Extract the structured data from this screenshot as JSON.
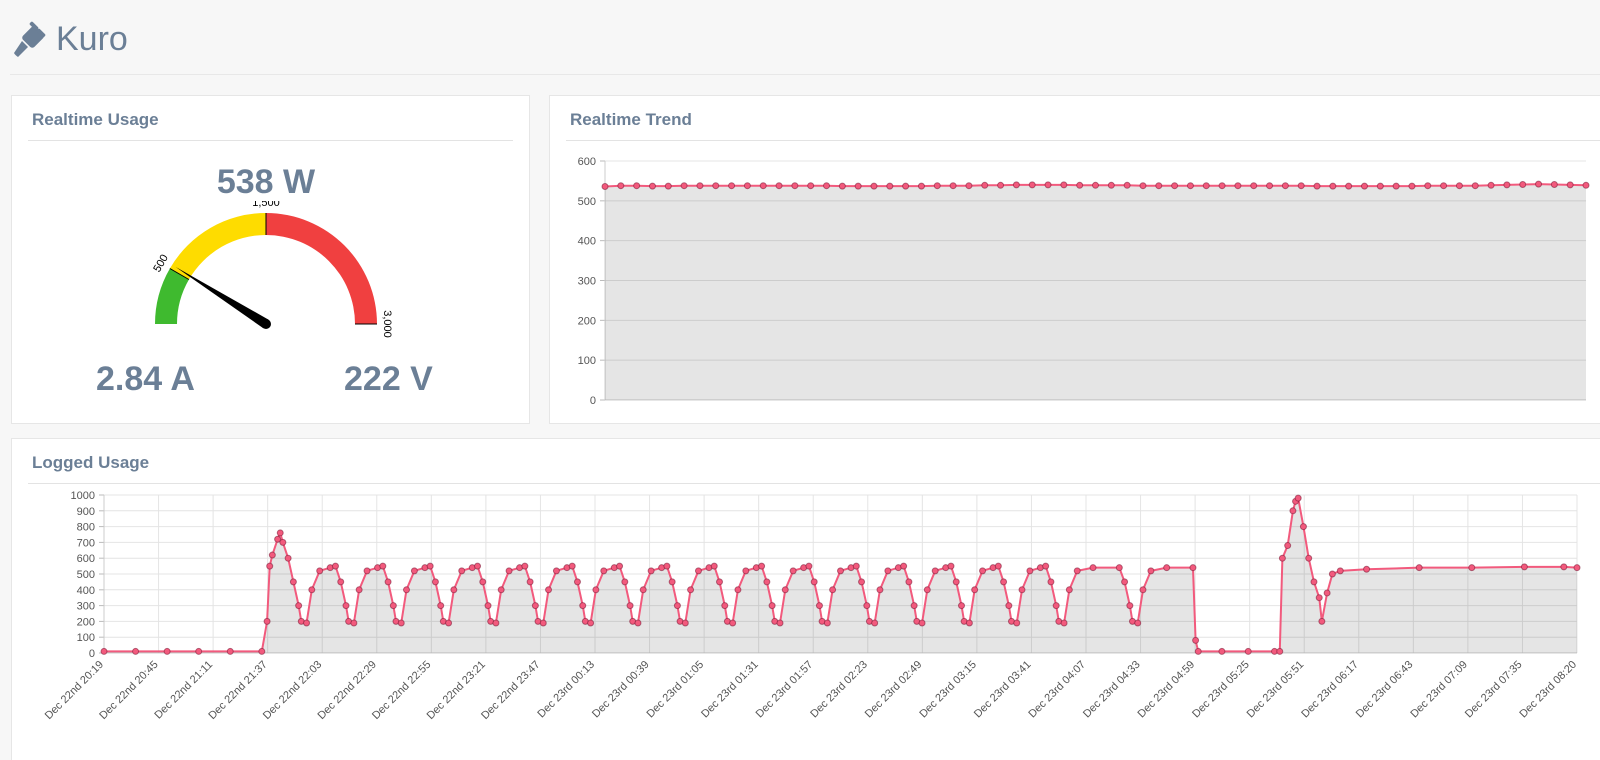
{
  "header": {
    "brand": "Kuro",
    "icon": "plug-icon"
  },
  "usage": {
    "title": "Realtime Usage",
    "power": "538 W",
    "current": "2.84 A",
    "voltage": "222 V",
    "gauge": {
      "value": 538,
      "min": 0,
      "max": 3000,
      "labels": [
        "500",
        "1,500",
        "3,000"
      ],
      "bands": [
        {
          "from": 0,
          "to": 500,
          "color": "#3fba2f"
        },
        {
          "from": 500,
          "to": 1500,
          "color": "#fedc00"
        },
        {
          "from": 1500,
          "to": 3000,
          "color": "#f04040"
        }
      ]
    }
  },
  "trend": {
    "title": "Realtime Trend",
    "chart_data": {
      "type": "area",
      "y_ticks": [
        "600",
        "500",
        "400",
        "300",
        "200",
        "100",
        "0"
      ],
      "ylim": [
        0,
        600
      ],
      "color": "#f25a7d",
      "values": [
        536,
        538,
        538,
        537,
        537,
        538,
        538,
        538,
        538,
        538,
        538,
        538,
        538,
        538,
        538,
        537,
        537,
        537,
        537,
        537,
        537,
        538,
        538,
        538,
        539,
        539,
        540,
        540,
        540,
        540,
        539,
        539,
        539,
        539,
        538,
        538,
        538,
        538,
        538,
        538,
        538,
        538,
        538,
        538,
        538,
        537,
        537,
        537,
        537,
        537,
        537,
        537,
        538,
        538,
        538,
        538,
        539,
        540,
        541,
        542,
        541,
        540,
        539
      ]
    }
  },
  "logged": {
    "title": "Logged Usage",
    "chart_data": {
      "type": "area",
      "y_ticks": [
        "1000",
        "900",
        "800",
        "700",
        "600",
        "500",
        "400",
        "300",
        "200",
        "100",
        "0"
      ],
      "ylim": [
        0,
        1000
      ],
      "color": "#f25a7d",
      "x_ticks": [
        "Dec 22nd 20:19",
        "Dec 22nd 20:45",
        "Dec 22nd 21:11",
        "Dec 22nd 21:37",
        "Dec 22nd 22:03",
        "Dec 22nd 22:29",
        "Dec 22nd 22:55",
        "Dec 22nd 23:21",
        "Dec 22nd 23:47",
        "Dec 23rd 00:13",
        "Dec 23rd 00:39",
        "Dec 23rd 01:05",
        "Dec 23rd 01:31",
        "Dec 23rd 01:57",
        "Dec 23rd 02:23",
        "Dec 23rd 02:49",
        "Dec 23rd 03:15",
        "Dec 23rd 03:41",
        "Dec 23rd 04:07",
        "Dec 23rd 04:33",
        "Dec 23rd 04:59",
        "Dec 23rd 05:25",
        "Dec 23rd 05:51",
        "Dec 23rd 06:17",
        "Dec 23rd 06:43",
        "Dec 23rd 07:09",
        "Dec 23rd 07:35",
        "Dec 23rd 08:20"
      ],
      "points": [
        [
          0,
          10
        ],
        [
          12,
          10
        ],
        [
          24,
          10
        ],
        [
          36,
          10
        ],
        [
          48,
          10
        ],
        [
          60,
          10
        ],
        [
          62,
          200
        ],
        [
          63,
          550
        ],
        [
          64,
          620
        ],
        [
          66,
          720
        ],
        [
          67,
          760
        ],
        [
          68,
          700
        ],
        [
          70,
          600
        ],
        [
          72,
          450
        ],
        [
          74,
          300
        ],
        [
          75,
          200
        ],
        [
          77,
          190
        ],
        [
          79,
          400
        ],
        [
          82,
          520
        ],
        [
          86,
          540
        ],
        [
          88,
          550
        ],
        [
          90,
          450
        ],
        [
          92,
          300
        ],
        [
          93,
          200
        ],
        [
          95,
          190
        ],
        [
          97,
          400
        ],
        [
          100,
          520
        ],
        [
          104,
          540
        ],
        [
          106,
          550
        ],
        [
          108,
          450
        ],
        [
          110,
          300
        ],
        [
          111,
          200
        ],
        [
          113,
          190
        ],
        [
          115,
          400
        ],
        [
          118,
          520
        ],
        [
          122,
          540
        ],
        [
          124,
          550
        ],
        [
          126,
          450
        ],
        [
          128,
          300
        ],
        [
          129,
          200
        ],
        [
          131,
          190
        ],
        [
          133,
          400
        ],
        [
          136,
          520
        ],
        [
          140,
          540
        ],
        [
          142,
          550
        ],
        [
          144,
          450
        ],
        [
          146,
          300
        ],
        [
          147,
          200
        ],
        [
          149,
          190
        ],
        [
          151,
          400
        ],
        [
          154,
          520
        ],
        [
          158,
          540
        ],
        [
          160,
          550
        ],
        [
          162,
          450
        ],
        [
          164,
          300
        ],
        [
          165,
          200
        ],
        [
          167,
          190
        ],
        [
          169,
          400
        ],
        [
          172,
          520
        ],
        [
          176,
          540
        ],
        [
          178,
          550
        ],
        [
          180,
          450
        ],
        [
          182,
          300
        ],
        [
          183,
          200
        ],
        [
          185,
          190
        ],
        [
          187,
          400
        ],
        [
          190,
          520
        ],
        [
          194,
          540
        ],
        [
          196,
          550
        ],
        [
          198,
          450
        ],
        [
          200,
          300
        ],
        [
          201,
          200
        ],
        [
          203,
          190
        ],
        [
          205,
          400
        ],
        [
          208,
          520
        ],
        [
          212,
          540
        ],
        [
          214,
          550
        ],
        [
          216,
          450
        ],
        [
          218,
          300
        ],
        [
          219,
          200
        ],
        [
          221,
          190
        ],
        [
          223,
          400
        ],
        [
          226,
          520
        ],
        [
          230,
          540
        ],
        [
          232,
          550
        ],
        [
          234,
          450
        ],
        [
          236,
          300
        ],
        [
          237,
          200
        ],
        [
          239,
          190
        ],
        [
          241,
          400
        ],
        [
          244,
          520
        ],
        [
          248,
          540
        ],
        [
          250,
          550
        ],
        [
          252,
          450
        ],
        [
          254,
          300
        ],
        [
          255,
          200
        ],
        [
          257,
          190
        ],
        [
          259,
          400
        ],
        [
          262,
          520
        ],
        [
          266,
          540
        ],
        [
          268,
          550
        ],
        [
          270,
          450
        ],
        [
          272,
          300
        ],
        [
          273,
          200
        ],
        [
          275,
          190
        ],
        [
          277,
          400
        ],
        [
          280,
          520
        ],
        [
          284,
          540
        ],
        [
          286,
          550
        ],
        [
          288,
          450
        ],
        [
          290,
          300
        ],
        [
          291,
          200
        ],
        [
          293,
          190
        ],
        [
          295,
          400
        ],
        [
          298,
          520
        ],
        [
          302,
          540
        ],
        [
          304,
          550
        ],
        [
          306,
          450
        ],
        [
          308,
          300
        ],
        [
          309,
          200
        ],
        [
          311,
          190
        ],
        [
          313,
          400
        ],
        [
          316,
          520
        ],
        [
          320,
          540
        ],
        [
          322,
          550
        ],
        [
          324,
          450
        ],
        [
          326,
          300
        ],
        [
          327,
          200
        ],
        [
          329,
          190
        ],
        [
          331,
          400
        ],
        [
          334,
          520
        ],
        [
          338,
          540
        ],
        [
          340,
          550
        ],
        [
          342,
          450
        ],
        [
          344,
          300
        ],
        [
          345,
          200
        ],
        [
          347,
          190
        ],
        [
          349,
          400
        ],
        [
          352,
          520
        ],
        [
          356,
          540
        ],
        [
          358,
          550
        ],
        [
          360,
          450
        ],
        [
          362,
          300
        ],
        [
          363,
          200
        ],
        [
          365,
          190
        ],
        [
          367,
          400
        ],
        [
          370,
          520
        ],
        [
          376,
          540
        ],
        [
          386,
          540
        ],
        [
          388,
          450
        ],
        [
          390,
          300
        ],
        [
          391,
          200
        ],
        [
          393,
          190
        ],
        [
          395,
          400
        ],
        [
          398,
          520
        ],
        [
          404,
          540
        ],
        [
          414,
          540
        ],
        [
          415,
          80
        ],
        [
          416,
          10
        ],
        [
          425,
          10
        ],
        [
          435,
          10
        ],
        [
          445,
          10
        ],
        [
          447,
          10
        ],
        [
          448,
          600
        ],
        [
          450,
          680
        ],
        [
          452,
          900
        ],
        [
          453,
          960
        ],
        [
          454,
          980
        ],
        [
          456,
          800
        ],
        [
          458,
          600
        ],
        [
          460,
          450
        ],
        [
          462,
          350
        ],
        [
          463,
          200
        ],
        [
          465,
          380
        ],
        [
          467,
          500
        ],
        [
          470,
          520
        ],
        [
          480,
          530
        ],
        [
          500,
          540
        ],
        [
          520,
          540
        ],
        [
          540,
          545
        ],
        [
          555,
          545
        ],
        [
          560,
          540
        ]
      ],
      "x_max": 560
    }
  }
}
